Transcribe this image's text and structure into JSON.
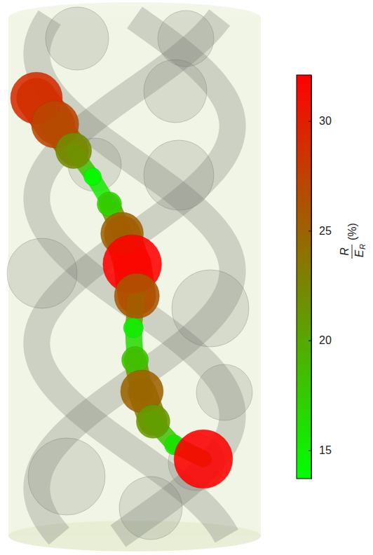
{
  "chart_data": {
    "type": "tube",
    "values": [
      29,
      27,
      22,
      14,
      17,
      25,
      32,
      26,
      15,
      18,
      25,
      21,
      15,
      32
    ],
    "colorbar_range": [
      13.7,
      32.1
    ],
    "colorbar_ticks": [
      15,
      20,
      25,
      30
    ],
    "colorbar_label": {
      "numerator": "R",
      "denominator": "E",
      "subscript": "R",
      "unit": "(%)"
    }
  }
}
